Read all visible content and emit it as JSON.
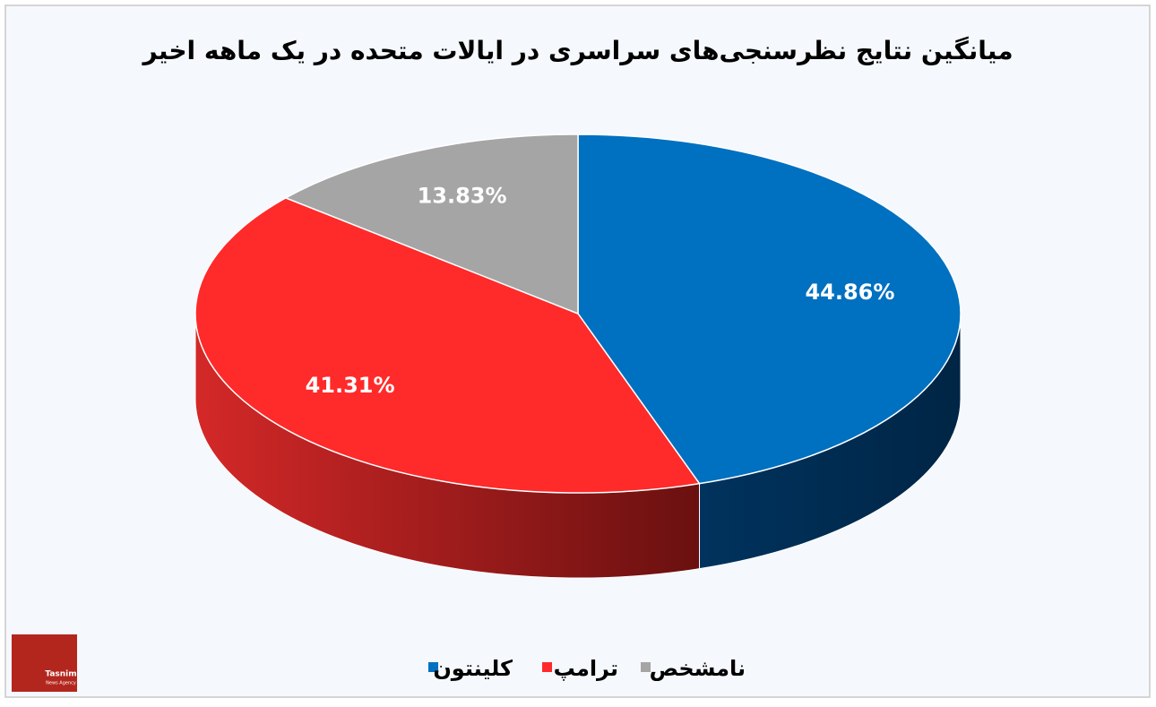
{
  "chart_data": {
    "type": "pie3d",
    "title": "میانگین نتایج نظرسنجی‌های سراسری در ایالات متحده در یک ماهه اخیر",
    "categories": [
      "کلینتون",
      "ترامپ",
      "نامشخص"
    ],
    "values": [
      44.86,
      41.31,
      13.83
    ],
    "value_labels": [
      "44.86%",
      "41.31%",
      "13.83%"
    ],
    "colors": [
      "#0070c0",
      "#ff2a2a",
      "#a5a5a5"
    ],
    "legend": "bottom"
  },
  "logo": {
    "name": "Tasnim",
    "subtitle": "News Agency"
  }
}
